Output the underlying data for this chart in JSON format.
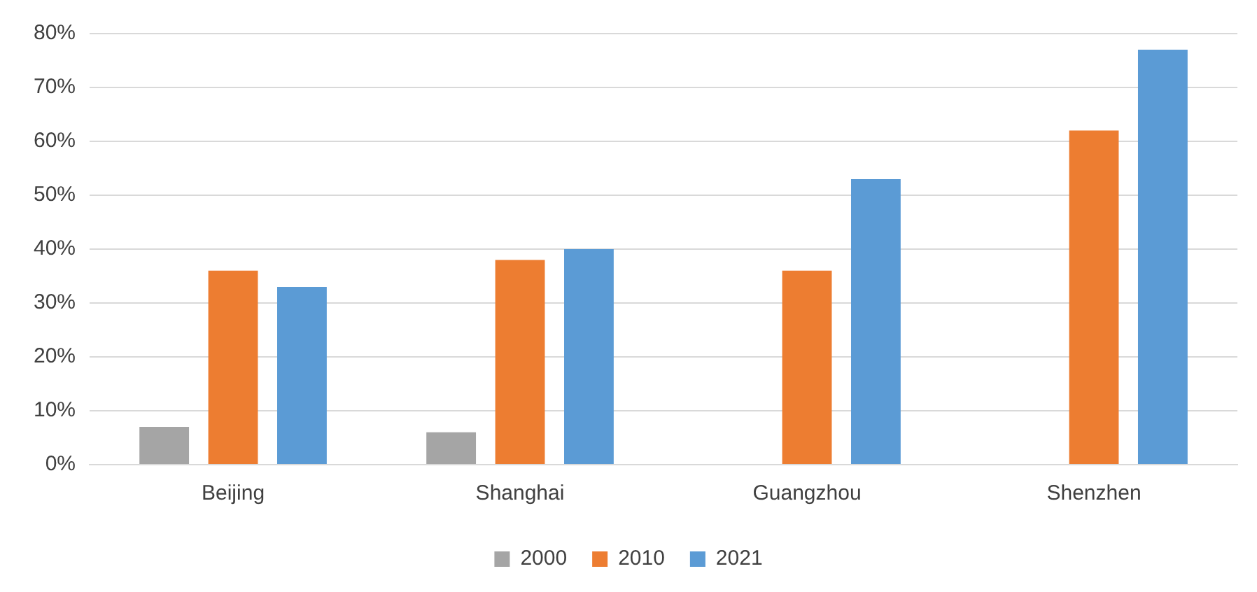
{
  "chart_data": {
    "type": "bar",
    "categories": [
      "Beijing",
      "Shanghai",
      "Guangzhou",
      "Shenzhen"
    ],
    "series": [
      {
        "name": "2000",
        "color": "#a5a5a5",
        "values": [
          7,
          6,
          null,
          null
        ]
      },
      {
        "name": "2010",
        "color": "#ed7d31",
        "values": [
          36,
          38,
          36,
          62
        ]
      },
      {
        "name": "2021",
        "color": "#5b9bd5",
        "values": [
          33,
          40,
          53,
          77
        ]
      }
    ],
    "ylim": [
      0,
      80
    ],
    "yticks": [
      {
        "value": 0,
        "label": "0%"
      },
      {
        "value": 10,
        "label": "10%"
      },
      {
        "value": 20,
        "label": "20%"
      },
      {
        "value": 30,
        "label": "30%"
      },
      {
        "value": 40,
        "label": "40%"
      },
      {
        "value": 50,
        "label": "50%"
      },
      {
        "value": 60,
        "label": "60%"
      },
      {
        "value": 70,
        "label": "70%"
      },
      {
        "value": 80,
        "label": "80%"
      }
    ],
    "grid": "y",
    "legend": "bottom"
  }
}
